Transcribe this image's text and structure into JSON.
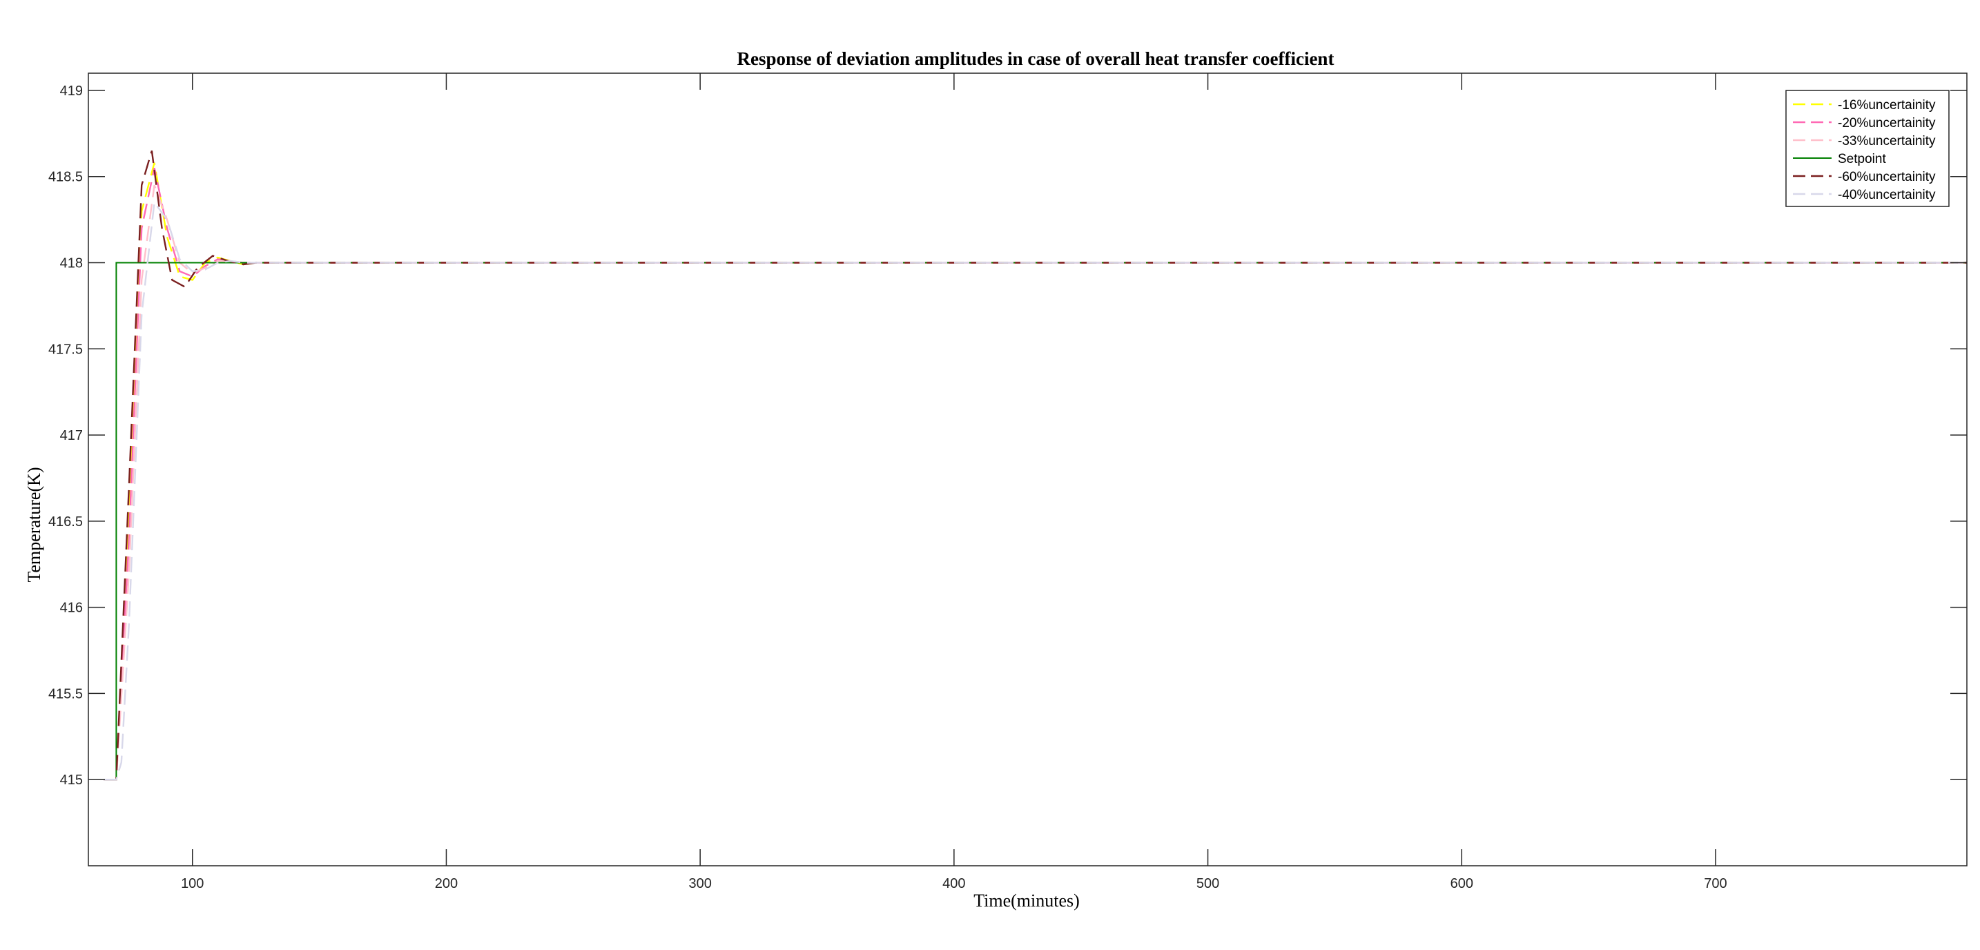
{
  "chart_data": {
    "type": "line",
    "title": "Response of deviation amplitudes in case of overall heat transfer coefficient",
    "xlabel": "Time(minutes)",
    "ylabel": "Temperature(K)",
    "xlim": [
      59,
      799
    ],
    "ylim": [
      414.5,
      419.1
    ],
    "xticks": [
      100,
      200,
      300,
      400,
      500,
      600,
      700
    ],
    "yticks": [
      415,
      415.5,
      416,
      416.5,
      417,
      417.5,
      418,
      418.5,
      419
    ],
    "xtick_labels": [
      "100",
      "200",
      "300",
      "400",
      "500",
      "600",
      "700"
    ],
    "ytick_labels": [
      "415",
      "415.5",
      "416",
      "416.5",
      "417",
      "417.5",
      "418",
      "418.5",
      "419"
    ],
    "grid": false,
    "legend_position": "top-right",
    "series": [
      {
        "name": "-16%uncertainity",
        "color": "#ffff00",
        "dash": "dashed",
        "x": [
          65,
          70,
          75,
          80,
          85,
          90,
          95,
          100,
          105,
          110,
          115,
          120,
          125,
          799
        ],
        "y": [
          415,
          415,
          416.5,
          418.3,
          418.58,
          418.15,
          417.92,
          417.9,
          418.0,
          418.03,
          418.01,
          417.99,
          418.0,
          418.0
        ]
      },
      {
        "name": "-20%uncertainity",
        "color": "#ff69b4",
        "dash": "dashed",
        "x": [
          65,
          70,
          75,
          80,
          85,
          90,
          95,
          100,
          105,
          110,
          115,
          120,
          125,
          799
        ],
        "y": [
          415,
          415,
          416.4,
          418.2,
          418.55,
          418.2,
          417.95,
          417.92,
          417.98,
          418.02,
          418.01,
          418.0,
          418.0,
          418.0
        ]
      },
      {
        "name": "-33%uncertainity",
        "color": "#ffc0cb",
        "dash": "dashed",
        "x": [
          65,
          70,
          75,
          80,
          85,
          90,
          95,
          100,
          105,
          110,
          115,
          120,
          125,
          799
        ],
        "y": [
          415,
          415,
          416.2,
          417.9,
          418.45,
          418.25,
          418.0,
          417.94,
          417.97,
          418.01,
          418.01,
          418.0,
          418.0,
          418.0
        ]
      },
      {
        "name": "Setpoint",
        "color": "#008000",
        "dash": "solid",
        "x": [
          65,
          70,
          70,
          799
        ],
        "y": [
          415,
          415,
          418,
          418
        ]
      },
      {
        "name": "-60%uncertainity",
        "color": "#7a1f1f",
        "dash": "dashed",
        "x": [
          65,
          70,
          75,
          80,
          84,
          88,
          92,
          97,
          102,
          108,
          114,
          120,
          125,
          799
        ],
        "y": [
          415,
          415,
          416.7,
          418.45,
          418.65,
          418.2,
          417.9,
          417.86,
          417.97,
          418.04,
          418.01,
          417.99,
          418.0,
          418.0
        ]
      },
      {
        "name": "-40%uncertainity",
        "color": "#d8d8ea",
        "dash": "dashed",
        "x": [
          65,
          70,
          72,
          75,
          80,
          85,
          90,
          95,
          100,
          105,
          110,
          115,
          120,
          125,
          799
        ],
        "y": [
          415,
          415,
          415.1,
          415.9,
          417.7,
          418.35,
          418.25,
          418.02,
          417.95,
          417.96,
          418.0,
          418.01,
          418.0,
          418.0,
          418.0
        ]
      }
    ]
  }
}
